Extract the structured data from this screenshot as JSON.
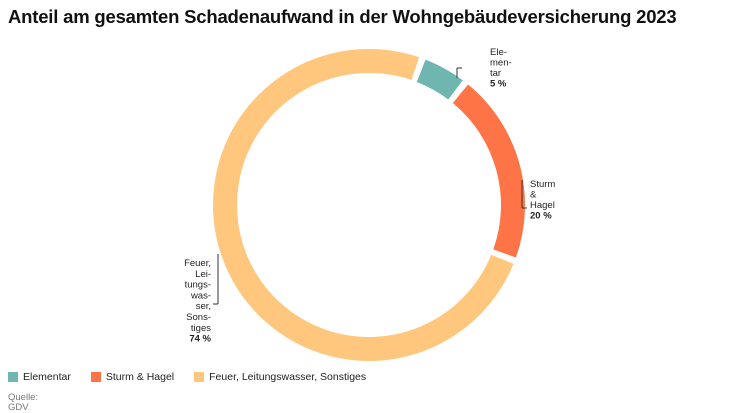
{
  "title": "Anteil am gesamten Schadenaufwand in der Wohngebäudeversicherung 2023",
  "source": {
    "label": "Quelle:",
    "value": "GDV"
  },
  "chart_data": {
    "type": "pie",
    "donut": true,
    "title": "Anteil am gesamten Schadenaufwand in der Wohngebäudeversicherung 2023",
    "legend_position": "bottom-left",
    "slices": [
      {
        "name": "Elementar",
        "value": 5,
        "label_lines": [
          "Ele-",
          "men-",
          "tar"
        ],
        "value_label": "5 %",
        "color": "#6fb5b0"
      },
      {
        "name": "Sturm & Hagel",
        "value": 20,
        "label_lines": [
          "Sturm",
          "&",
          "Hagel"
        ],
        "value_label": "20 %",
        "color": "#ff7446"
      },
      {
        "name": "Feuer, Leitungswasser, Sonstiges",
        "value": 74,
        "label_lines": [
          "Feuer,",
          "Lei-",
          "tungs-",
          "was-",
          "ser,",
          "Sons-",
          "tiges"
        ],
        "value_label": "74 %",
        "color": "#ffc77e"
      }
    ]
  }
}
